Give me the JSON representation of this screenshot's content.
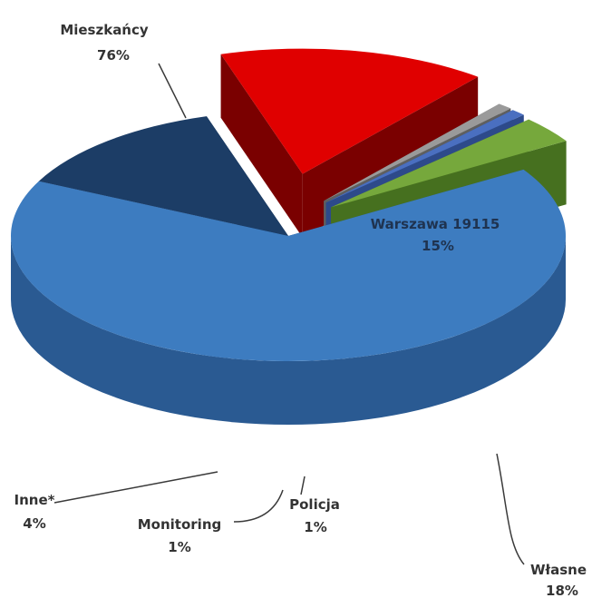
{
  "chart_data": {
    "type": "pie",
    "title": "",
    "legend": "none",
    "slices": [
      {
        "name": "Mieszkańcy",
        "value": 76,
        "label": "76%",
        "color": "#3d7cc0",
        "side": "#2a5a92"
      },
      {
        "name": "Warszawa 19115",
        "value": 15,
        "label": "15%",
        "color": "#1c3d66",
        "side": "#122b4a"
      },
      {
        "name": "Własne",
        "value": 18,
        "label": "18%",
        "color": "#e00000",
        "side": "#7a0000"
      },
      {
        "name": "Policja",
        "value": 1,
        "label": "1%",
        "color": "#9a9a9a",
        "side": "#5f5f5f"
      },
      {
        "name": "Monitoring",
        "value": 1,
        "label": "1%",
        "color": "#4a6fc0",
        "side": "#2d4a8a"
      },
      {
        "name": "Inne*",
        "value": 4,
        "label": "4%",
        "color": "#76a83c",
        "side": "#46701f"
      }
    ]
  }
}
